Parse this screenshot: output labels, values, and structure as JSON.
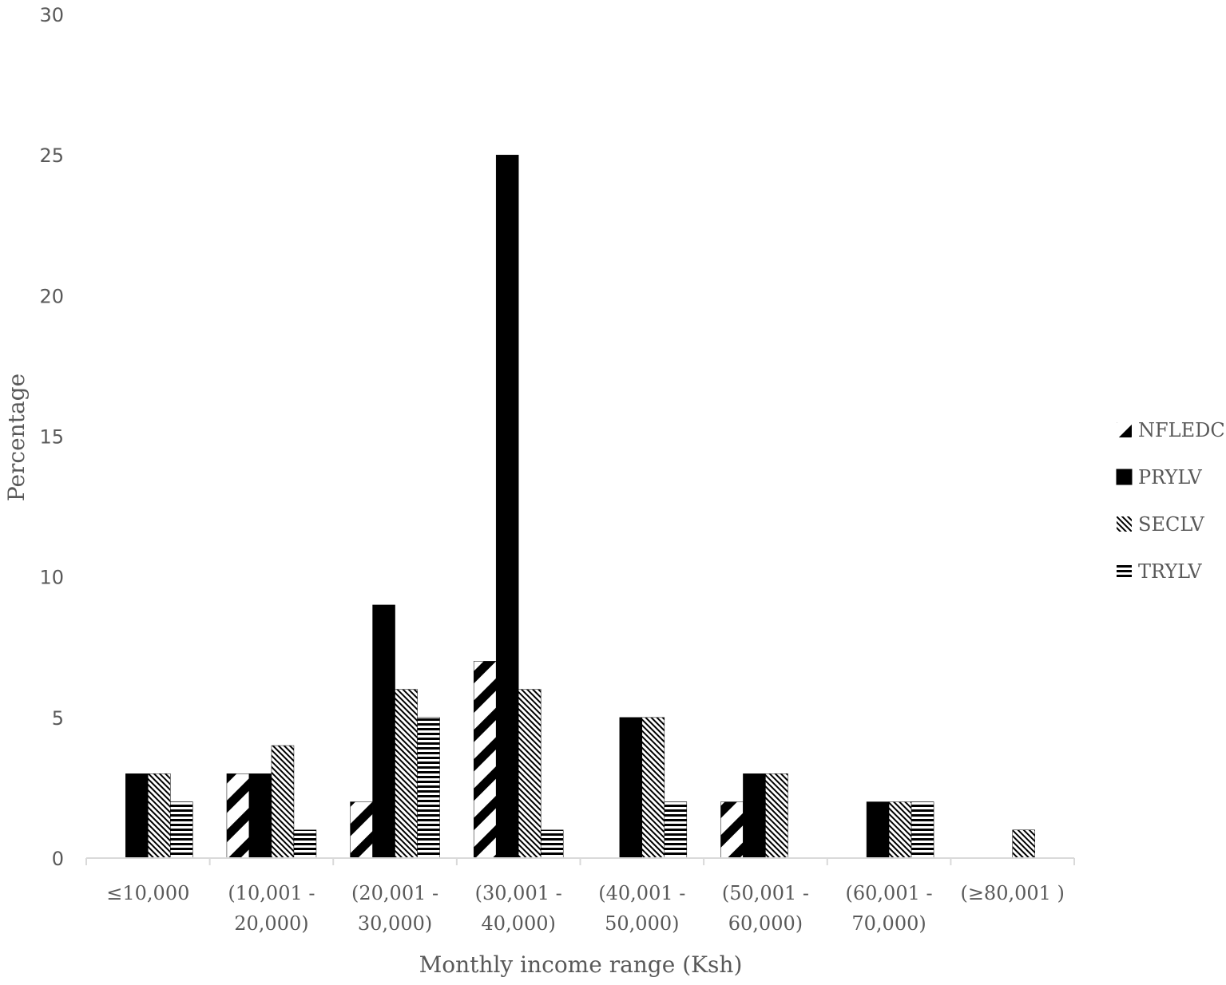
{
  "chart_data": {
    "type": "bar",
    "categories": [
      [
        "≤10,000"
      ],
      [
        "(10,001  -",
        "20,000)"
      ],
      [
        "(20,001 -",
        "30,000)"
      ],
      [
        "(30,001 -",
        "40,000)"
      ],
      [
        "(40,001 -",
        "50,000)"
      ],
      [
        "(50,001 -",
        "60,000)"
      ],
      [
        "(60,001 -",
        "70,000)"
      ],
      [
        "(≥80,001 )"
      ]
    ],
    "series": [
      {
        "name": "NFLEDC",
        "pattern": "wide-diagonal",
        "values": [
          0,
          3,
          2,
          7,
          0,
          2,
          0,
          0
        ]
      },
      {
        "name": "PRYLV",
        "pattern": "solid",
        "values": [
          3,
          3,
          9,
          25,
          5,
          3,
          2,
          0
        ]
      },
      {
        "name": "SECLV",
        "pattern": "fine-diagonal",
        "values": [
          3,
          4,
          6,
          6,
          5,
          3,
          2,
          1
        ]
      },
      {
        "name": "TRYLV",
        "pattern": "horizontal",
        "values": [
          2,
          1,
          5,
          1,
          2,
          0,
          2,
          0
        ]
      }
    ],
    "xlabel": "Monthly income range (Ksh)",
    "ylabel": "Percentage",
    "ylim": [
      0,
      30
    ],
    "yticks": [
      "0",
      "5",
      "10",
      "15",
      "20",
      "25",
      "30"
    ],
    "grid": false,
    "legend_position": "right",
    "colors": {
      "ink": "#000000",
      "axis": "#d9d9d9",
      "text": "#595959"
    }
  }
}
